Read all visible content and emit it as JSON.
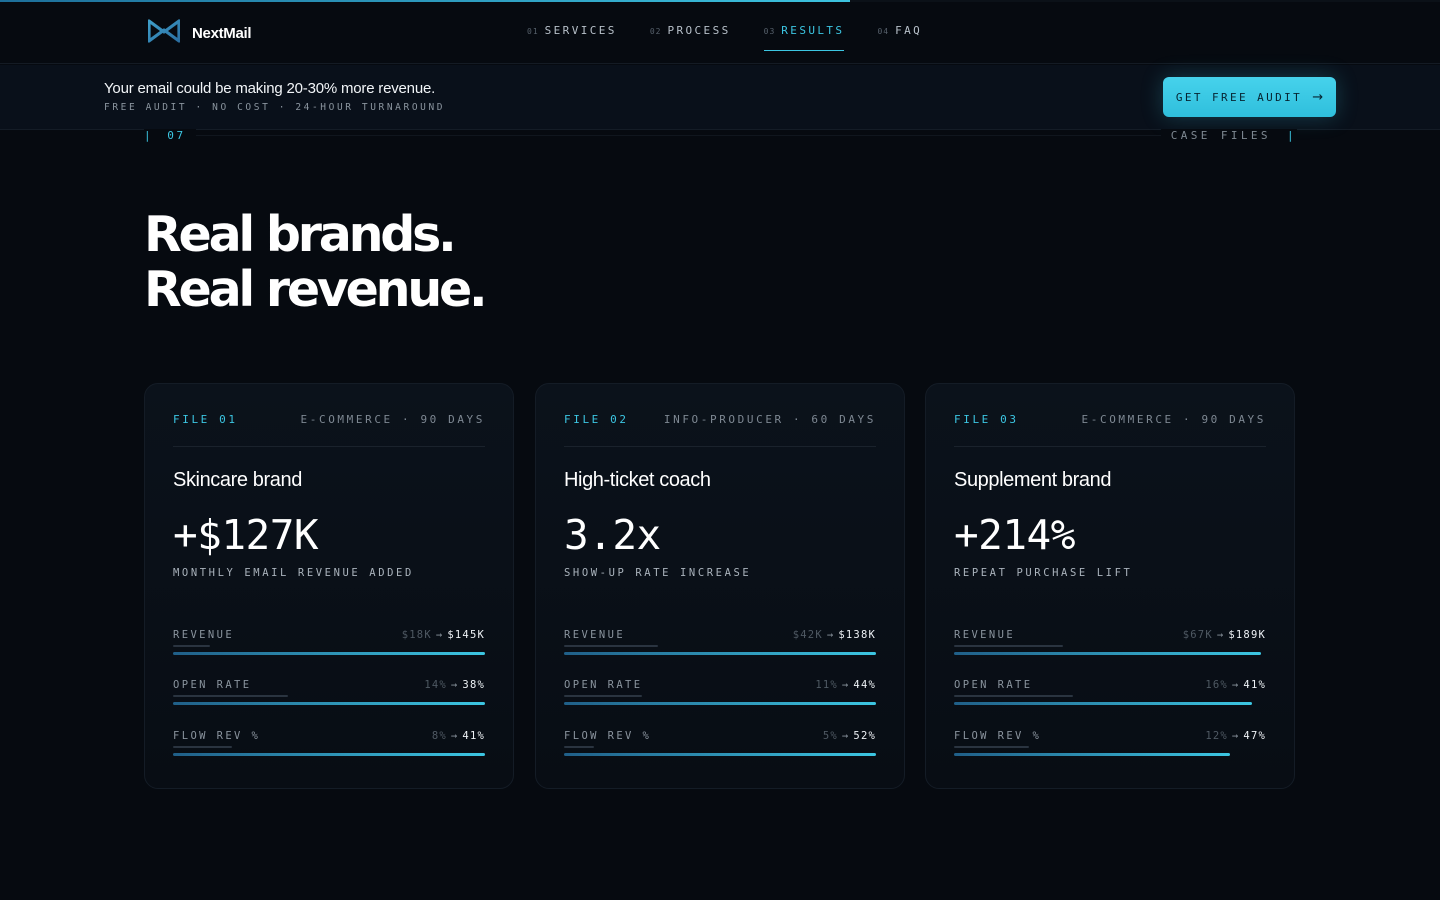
{
  "scroll_progress": 0.59,
  "brand": {
    "name": "NextMail",
    "logo_icon": "bowtie-logo-icon",
    "accent": "#3cc6e2"
  },
  "nav": {
    "items": [
      {
        "num": "01",
        "label": "SERVICES",
        "active": false
      },
      {
        "num": "02",
        "label": "PROCESS",
        "active": false
      },
      {
        "num": "03",
        "label": "RESULTS",
        "active": true
      },
      {
        "num": "04",
        "label": "FAQ",
        "active": false
      }
    ]
  },
  "banner": {
    "title": "Your email could be making 20-30% more revenue.",
    "subtitle": "FREE AUDIT · NO COST · 24-HOUR TURNAROUND",
    "cta_label": "GET FREE AUDIT",
    "cta_icon": "arrow-right-icon"
  },
  "section": {
    "tick": "|",
    "number": "07",
    "label": "CASE FILES",
    "headline_line1": "Real brands.",
    "headline_line2": "Real revenue."
  },
  "cases": [
    {
      "file": "FILE 01",
      "meta": "E-COMMERCE · 90 DAYS",
      "title": "Skincare brand",
      "stat": "+$127K",
      "stat_label": "MONTHLY EMAIL REVENUE ADDED",
      "metrics": [
        {
          "name": "REVENUE",
          "before": "$18K",
          "arrow": "→",
          "after": "$145K",
          "before_level": 0.12,
          "after_level": 1.0
        },
        {
          "name": "OPEN RATE",
          "before": "14%",
          "arrow": "→",
          "after": "38%",
          "before_level": 0.37,
          "after_level": 1.0
        },
        {
          "name": "FLOW REV %",
          "before": "8%",
          "arrow": "→",
          "after": "41%",
          "before_level": 0.19,
          "after_level": 1.0
        }
      ]
    },
    {
      "file": "FILE 02",
      "meta": "INFO-PRODUCER · 60 DAYS",
      "title": "High-ticket coach",
      "stat": "3.2x",
      "stat_label": "SHOW-UP RATE INCREASE",
      "metrics": [
        {
          "name": "REVENUE",
          "before": "$42K",
          "arrow": "→",
          "after": "$138K",
          "before_level": 0.3,
          "after_level": 1.0
        },
        {
          "name": "OPEN RATE",
          "before": "11%",
          "arrow": "→",
          "after": "44%",
          "before_level": 0.25,
          "after_level": 1.0
        },
        {
          "name": "FLOW REV %",
          "before": "5%",
          "arrow": "→",
          "after": "52%",
          "before_level": 0.095,
          "after_level": 1.0
        }
      ]
    },
    {
      "file": "FILE 03",
      "meta": "E-COMMERCE · 90 DAYS",
      "title": "Supplement brand",
      "stat": "+214%",
      "stat_label": "REPEAT PURCHASE LIFT",
      "metrics": [
        {
          "name": "REVENUE",
          "before": "$67K",
          "arrow": "→",
          "after": "$189K",
          "before_level": 0.35,
          "after_level": 0.985
        },
        {
          "name": "OPEN RATE",
          "before": "16%",
          "arrow": "→",
          "after": "41%",
          "before_level": 0.38,
          "after_level": 0.955
        },
        {
          "name": "FLOW REV %",
          "before": "12%",
          "arrow": "→",
          "after": "47%",
          "before_level": 0.24,
          "after_level": 0.885
        }
      ]
    }
  ]
}
